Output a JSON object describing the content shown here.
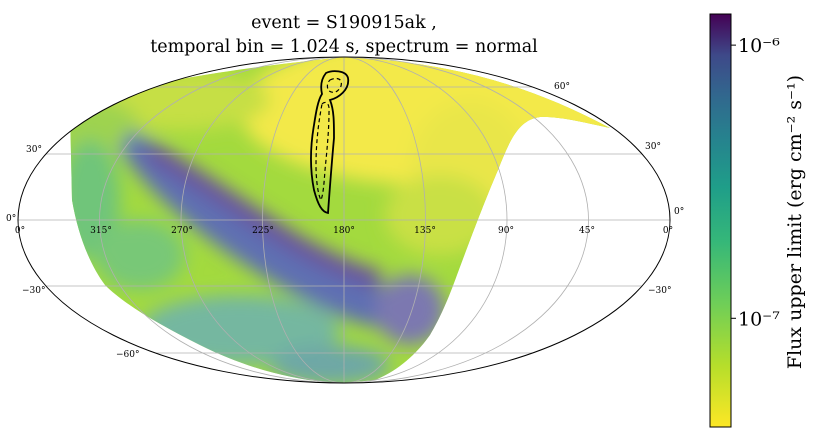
{
  "chart_data": {
    "type": "heatmap",
    "projection": "mollweide",
    "title_line1": "event = S190915ak ,",
    "title_line2": "temporal bin = 1.024 s, spectrum = normal",
    "x_tick_labels": [
      "0°",
      "315°",
      "270°",
      "225°",
      "180°",
      "135°",
      "90°",
      "45°",
      "0°"
    ],
    "lat_tick_labels": {
      "p60": "60°",
      "p30": "30°",
      "eq": "0°",
      "m30": "−30°",
      "m60": "−60°"
    },
    "grid": true,
    "colormap": "viridis_r",
    "colorbar": {
      "label": "Flux upper limit (erg cm⁻² s⁻¹)",
      "scale": "log",
      "range": [
        4e-08,
        1.3e-06
      ],
      "tick_labels": [
        "10⁻⁶",
        "10⁻⁷"
      ],
      "tick_values": [
        1e-06,
        1e-07
      ]
    },
    "contours": [
      {
        "level": "outer",
        "style": "solid"
      },
      {
        "level": "inner",
        "style": "dashed"
      }
    ],
    "colors": {
      "low": "#fde725",
      "high": "#440154",
      "contour": "#000000",
      "grid": "#b0b0b0"
    }
  }
}
